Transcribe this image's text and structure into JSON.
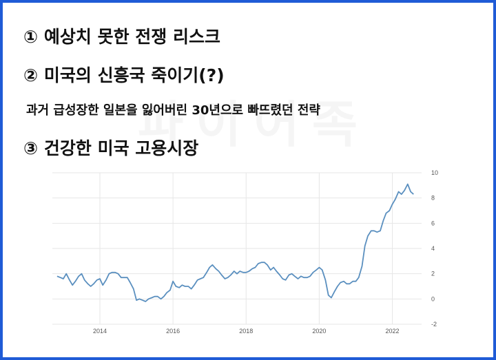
{
  "headings": {
    "h1": "① 예상치 못한 전쟁 리스크",
    "h2": "② 미국의 신흥국 죽이기(?)",
    "sub": "과거 급성장한 일본을 잃어버린 30년으로 빠뜨렸던 전략",
    "h3": "③ 건강한 미국 고용시장"
  },
  "watermark": "파이어족",
  "colors": {
    "border": "#1f5bd6",
    "line": "#5a8fbf",
    "grid": "#e6e6e6"
  },
  "chart_data": {
    "type": "line",
    "title": "",
    "xlabel": "",
    "ylabel": "",
    "xlim": [
      2012.7,
      2022.8
    ],
    "ylim": [
      -2,
      10
    ],
    "x_ticks": [
      2014,
      2016,
      2018,
      2020,
      2022
    ],
    "y_ticks": [
      -2,
      0,
      2,
      4,
      6,
      8,
      10
    ],
    "grid": true,
    "series": [
      {
        "name": "",
        "x": [
          2012.83,
          2012.92,
          2013.0,
          2013.08,
          2013.17,
          2013.25,
          2013.33,
          2013.42,
          2013.5,
          2013.58,
          2013.67,
          2013.75,
          2013.83,
          2013.92,
          2014.0,
          2014.08,
          2014.17,
          2014.25,
          2014.33,
          2014.42,
          2014.5,
          2014.58,
          2014.67,
          2014.75,
          2014.83,
          2014.92,
          2015.0,
          2015.08,
          2015.17,
          2015.25,
          2015.33,
          2015.42,
          2015.5,
          2015.58,
          2015.67,
          2015.75,
          2015.83,
          2015.92,
          2016.0,
          2016.08,
          2016.17,
          2016.25,
          2016.33,
          2016.42,
          2016.5,
          2016.58,
          2016.67,
          2016.75,
          2016.83,
          2016.92,
          2017.0,
          2017.08,
          2017.17,
          2017.25,
          2017.33,
          2017.42,
          2017.5,
          2017.58,
          2017.67,
          2017.75,
          2017.83,
          2017.92,
          2018.0,
          2018.08,
          2018.17,
          2018.25,
          2018.33,
          2018.42,
          2018.5,
          2018.58,
          2018.67,
          2018.75,
          2018.83,
          2018.92,
          2019.0,
          2019.08,
          2019.17,
          2019.25,
          2019.33,
          2019.42,
          2019.5,
          2019.58,
          2019.67,
          2019.75,
          2019.83,
          2019.92,
          2020.0,
          2020.08,
          2020.17,
          2020.25,
          2020.33,
          2020.42,
          2020.5,
          2020.58,
          2020.67,
          2020.75,
          2020.83,
          2020.92,
          2021.0,
          2021.08,
          2021.17,
          2021.25,
          2021.33,
          2021.42,
          2021.5,
          2021.58,
          2021.67,
          2021.75,
          2021.83,
          2021.92,
          2022.0,
          2022.08,
          2022.17,
          2022.25,
          2022.33,
          2022.42,
          2022.5,
          2022.58
        ],
        "y": [
          1.8,
          1.7,
          1.6,
          2.0,
          1.5,
          1.1,
          1.4,
          1.8,
          2.0,
          1.5,
          1.2,
          1.0,
          1.2,
          1.5,
          1.6,
          1.1,
          1.5,
          2.0,
          2.1,
          2.1,
          2.0,
          1.7,
          1.7,
          1.7,
          1.3,
          0.8,
          -0.1,
          0.0,
          -0.1,
          -0.2,
          0.0,
          0.1,
          0.2,
          0.2,
          0.0,
          0.2,
          0.5,
          0.7,
          1.4,
          1.0,
          0.9,
          1.1,
          1.0,
          1.0,
          0.8,
          1.1,
          1.5,
          1.6,
          1.7,
          2.1,
          2.5,
          2.7,
          2.4,
          2.2,
          1.9,
          1.6,
          1.7,
          1.9,
          2.2,
          2.0,
          2.2,
          2.1,
          2.1,
          2.2,
          2.4,
          2.5,
          2.8,
          2.9,
          2.9,
          2.7,
          2.3,
          2.5,
          2.2,
          1.9,
          1.6,
          1.5,
          1.9,
          2.0,
          1.8,
          1.6,
          1.8,
          1.7,
          1.7,
          1.8,
          2.1,
          2.3,
          2.5,
          2.3,
          1.5,
          0.3,
          0.1,
          0.6,
          1.0,
          1.3,
          1.4,
          1.2,
          1.2,
          1.4,
          1.4,
          1.7,
          2.6,
          4.2,
          5.0,
          5.4,
          5.4,
          5.3,
          5.4,
          6.2,
          6.8,
          7.0,
          7.5,
          7.9,
          8.5,
          8.3,
          8.6,
          9.1,
          8.5,
          8.3
        ]
      }
    ]
  }
}
